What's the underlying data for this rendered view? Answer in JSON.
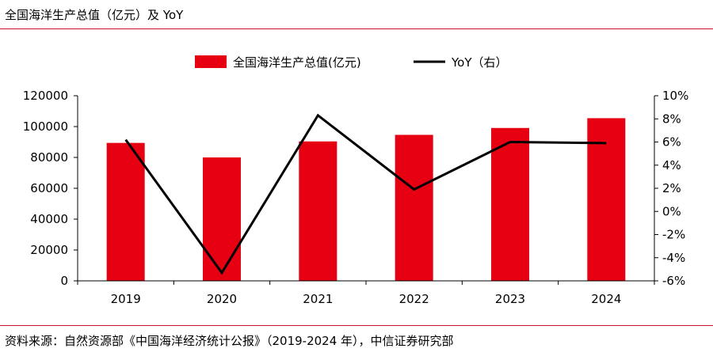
{
  "header": {
    "title": "全国海洋生产总值（亿元）及 YoY"
  },
  "source": {
    "text": "资料来源：自然资源部《中国海洋经济统计公报》（2019-2024 年），中信证券研究部"
  },
  "chart_data": {
    "type": "bar",
    "title": "全国海洋生产总值（亿元）及 YoY",
    "categories": [
      "2019",
      "2020",
      "2021",
      "2022",
      "2023",
      "2024"
    ],
    "series": [
      {
        "name": "全国海洋生产总值(亿元)",
        "type": "bar",
        "axis": "left",
        "color": "#e60012",
        "values": [
          89415,
          80010,
          90385,
          94628,
          99097,
          105438
        ]
      },
      {
        "name": "YoY（右）",
        "type": "line",
        "axis": "right",
        "color": "#000000",
        "values": [
          6.2,
          -5.3,
          8.3,
          1.9,
          6.0,
          5.9
        ]
      }
    ],
    "left_axis": {
      "min": 0,
      "max": 120000,
      "ticks": [
        "0",
        "20000",
        "40000",
        "60000",
        "80000",
        "100000",
        "120000"
      ]
    },
    "right_axis": {
      "min": -6,
      "max": 10,
      "ticks": [
        "-6%",
        "-4%",
        "-2%",
        "0%",
        "2%",
        "4%",
        "6%",
        "8%",
        "10%"
      ]
    },
    "legend": {
      "position": "top-center"
    },
    "grid": false
  }
}
